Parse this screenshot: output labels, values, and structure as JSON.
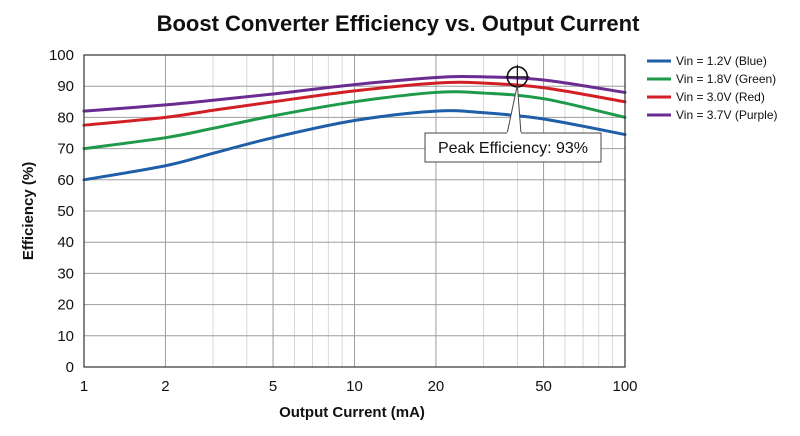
{
  "chart_data": {
    "type": "line",
    "title": "Boost Converter Efficiency vs. Output Current",
    "xlabel": "Output Current (mA)",
    "ylabel": "Efficiency (%)",
    "x_scale": "log",
    "xlim": [
      1,
      100
    ],
    "ylim": [
      0,
      100
    ],
    "x_ticks": [
      1,
      2,
      5,
      10,
      20,
      50,
      100
    ],
    "x_tick_labels": [
      "1",
      "2",
      "5",
      "10",
      "20",
      "50",
      "100"
    ],
    "y_ticks": [
      0,
      10,
      20,
      30,
      40,
      50,
      60,
      70,
      80,
      90,
      100
    ],
    "y_tick_labels": [
      "0",
      "10",
      "20",
      "30",
      "40",
      "50",
      "60",
      "70",
      "80",
      "90",
      "100"
    ],
    "grid": true,
    "legend_position": "right",
    "x": [
      1,
      2,
      3,
      5,
      10,
      20,
      30,
      50,
      100
    ],
    "series": [
      {
        "name": "Vin = 1.2V (Blue)",
        "color": "#1f5ea8",
        "values": [
          60,
          64.5,
          68.5,
          73.5,
          79,
          82,
          81.5,
          79.5,
          74.5
        ]
      },
      {
        "name": "Vin = 1.8V (Green)",
        "color": "#1f9a4a",
        "values": [
          70,
          73.5,
          76.5,
          80.5,
          85,
          88,
          87.8,
          86,
          80
        ]
      },
      {
        "name": "Vin = 3.0V (Red)",
        "color": "#d21f26",
        "values": [
          77.5,
          80,
          82.3,
          85,
          88.5,
          91,
          91,
          89.5,
          85
        ]
      },
      {
        "name": "Vin = 3.7V (Purple)",
        "color": "#6a2c91",
        "values": [
          82,
          84,
          85.5,
          87.5,
          90.5,
          92.8,
          93,
          92,
          88
        ]
      }
    ],
    "annotations": [
      {
        "text": "Peak Efficiency: 93%",
        "x": 40,
        "y": 93
      }
    ]
  }
}
